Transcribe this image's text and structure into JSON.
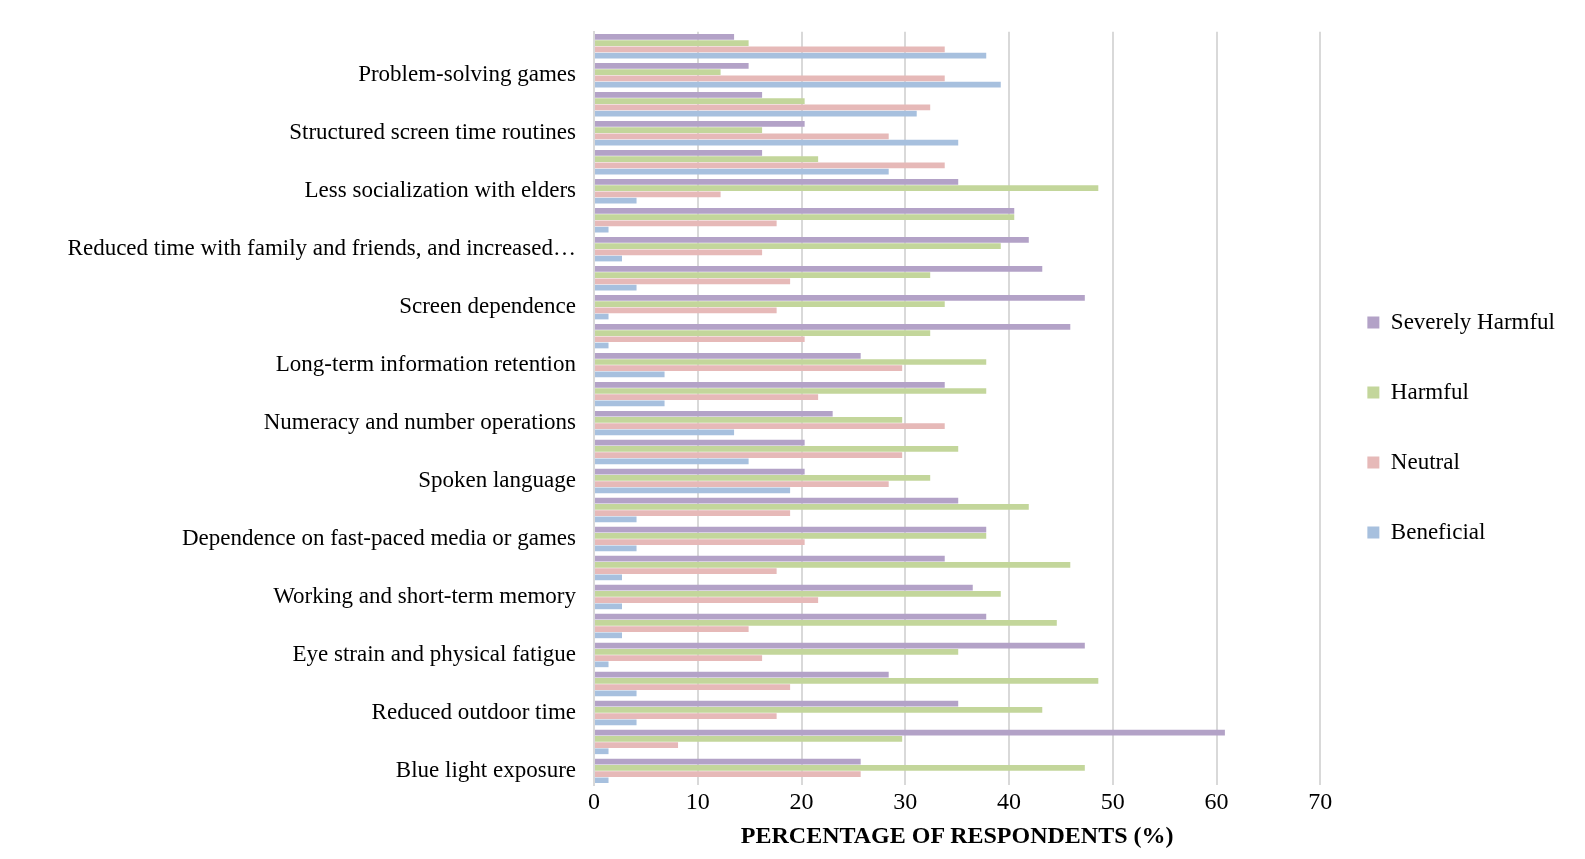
{
  "chart_data": {
    "type": "bar",
    "orientation": "horizontal",
    "xlabel": "PERCENTAGE OF RESPONDENTS (%)",
    "categories": [
      null,
      "Problem-solving games",
      null,
      "Structured screen time routines",
      null,
      "Less socialization with elders",
      null,
      "Reduced time with family and friends, and increased…",
      null,
      "Screen dependence",
      null,
      "Long-term information retention",
      null,
      "Numeracy and number operations",
      null,
      "Spoken language",
      null,
      "Dependence on fast-paced media or games",
      null,
      "Working and short-term memory",
      null,
      "Eye strain and physical fatigue",
      null,
      "Reduced outdoor time",
      null,
      "Blue light exposure"
    ],
    "series": [
      {
        "name": "Severely Harmful",
        "color": "#b3a2c7",
        "values": [
          13.5,
          14.9,
          16.2,
          20.3,
          16.2,
          35.1,
          40.5,
          41.9,
          43.2,
          47.3,
          45.9,
          25.7,
          33.8,
          23.0,
          20.3,
          20.3,
          35.1,
          37.8,
          33.8,
          36.5,
          37.8,
          47.3,
          28.4,
          35.1,
          60.8,
          25.7
        ]
      },
      {
        "name": "Harmful",
        "color": "#c3d69b",
        "values": [
          14.9,
          12.2,
          20.3,
          16.2,
          21.6,
          48.6,
          40.5,
          39.2,
          32.4,
          33.8,
          32.4,
          37.8,
          37.8,
          29.7,
          35.1,
          32.4,
          41.9,
          37.8,
          45.9,
          39.2,
          44.6,
          35.1,
          48.6,
          43.2,
          29.7,
          47.3
        ]
      },
      {
        "name": "Neutral",
        "color": "#e6b9b8",
        "values": [
          33.8,
          33.8,
          32.4,
          28.4,
          33.8,
          12.2,
          17.6,
          16.2,
          18.9,
          17.6,
          20.3,
          29.7,
          21.6,
          33.8,
          29.7,
          28.4,
          18.9,
          20.3,
          17.6,
          21.6,
          14.9,
          16.2,
          18.9,
          17.6,
          8.1,
          25.7
        ]
      },
      {
        "name": "Beneficial",
        "color": "#a7c0de",
        "values": [
          37.8,
          39.2,
          31.1,
          35.1,
          28.4,
          4.1,
          1.4,
          2.7,
          4.1,
          1.4,
          1.4,
          6.8,
          6.8,
          13.5,
          14.9,
          18.9,
          4.1,
          4.1,
          2.7,
          2.7,
          2.7,
          1.4,
          4.1,
          4.1,
          1.4,
          1.4
        ]
      }
    ],
    "xlim": [
      0,
      70
    ],
    "xticks": [
      0,
      10,
      20,
      30,
      40,
      50,
      60,
      70
    ],
    "grid": "x",
    "legend": "right"
  }
}
